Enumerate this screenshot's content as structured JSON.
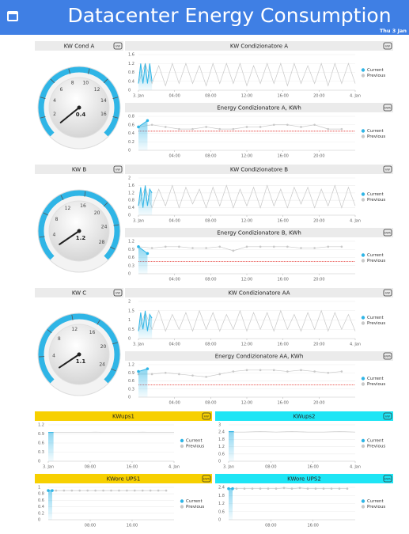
{
  "header": {
    "title": "Datacenter Energy Consumption",
    "date": "Thu 3 Jan"
  },
  "chart_data": [
    {
      "type": "gauge",
      "title": "KW Cond A",
      "unit": "kW",
      "value": 0.4,
      "value_labels": "0.4",
      "ylim": [
        0,
        18
      ],
      "yticks": [
        2,
        4,
        6,
        8,
        10,
        12,
        14,
        16
      ],
      "color": "#2fb5e6"
    },
    {
      "type": "line",
      "title": "KW Condizionatore A",
      "unit": "kW",
      "xlim": [
        0,
        24
      ],
      "xticks": [
        {
          "value": 0,
          "label": "3. Jan"
        },
        {
          "value": 4,
          "label": "04:00"
        },
        {
          "value": 8,
          "label": "08:00"
        },
        {
          "value": 12,
          "label": "12:00"
        },
        {
          "value": 16,
          "label": "16:00"
        },
        {
          "value": 20,
          "label": "20:00"
        },
        {
          "value": 24,
          "label": "4. Jan"
        }
      ],
      "ylim": [
        0,
        1.6
      ],
      "yticks": [
        0,
        0.4,
        0.8,
        1.2,
        1.6
      ],
      "markers": false,
      "series": [
        {
          "name": "Current",
          "color": "#2fb5e6",
          "x": [
            0,
            0.25,
            0.5,
            0.75,
            1,
            1.25,
            1.5
          ],
          "values": [
            0.3,
            1.2,
            0.3,
            1.2,
            0.3,
            1.2,
            0.4
          ]
        },
        {
          "name": "Previous",
          "color": "#c8c8c8",
          "x": [
            0,
            0.75,
            1.5,
            2.25,
            3,
            3.75,
            4.5,
            5.25,
            6,
            6.75,
            7.5,
            8.25,
            9,
            9.75,
            10.5,
            11.25,
            12,
            12.75,
            13.5,
            14.25,
            15,
            15.75,
            16.5,
            17.25,
            18,
            18.75,
            19.5,
            20.25,
            21,
            21.75,
            22.5,
            23.25,
            24
          ],
          "values": [
            0.3,
            1.2,
            0.3,
            1.1,
            0.2,
            1.2,
            0.3,
            1.2,
            0.3,
            1.1,
            0.2,
            1.2,
            0.3,
            1.2,
            0.3,
            1.2,
            0.2,
            1.1,
            0.3,
            1.2,
            0.3,
            1.2,
            0.2,
            1.2,
            0.3,
            1.1,
            0.3,
            1.2,
            0.2,
            1.2,
            0.3,
            1.2,
            0.3
          ]
        }
      ]
    },
    {
      "type": "line",
      "title": "Energy Condizionatore A, KWh",
      "unit": "kWh",
      "xlim": [
        0,
        24
      ],
      "xticks": [
        {
          "value": 4,
          "label": "04:00"
        },
        {
          "value": 8,
          "label": "08:00"
        },
        {
          "value": 12,
          "label": "12:00"
        },
        {
          "value": 16,
          "label": "16:00"
        },
        {
          "value": 20,
          "label": "20:00"
        }
      ],
      "ylim": [
        0,
        0.8
      ],
      "yticks": [
        0,
        0.2,
        0.4,
        0.6,
        0.8
      ],
      "threshold": 0.45,
      "markers": true,
      "series": [
        {
          "name": "Current",
          "color": "#2fb5e6",
          "x": [
            0,
            1
          ],
          "values": [
            0.55,
            0.7
          ]
        },
        {
          "name": "Previous",
          "color": "#c8c8c8",
          "x": [
            0,
            1.5,
            3,
            4.5,
            6,
            7.5,
            9,
            10.5,
            12,
            13.5,
            15,
            16.5,
            18,
            19.5,
            21,
            22.5
          ],
          "values": [
            0.55,
            0.6,
            0.55,
            0.5,
            0.5,
            0.55,
            0.5,
            0.5,
            0.55,
            0.55,
            0.6,
            0.6,
            0.55,
            0.6,
            0.5,
            0.5
          ]
        }
      ]
    },
    {
      "type": "gauge",
      "title": "KW B",
      "unit": "kW",
      "value": 1.2,
      "value_labels": "1.2",
      "ylim": [
        0,
        30
      ],
      "yticks": [
        4,
        8,
        12,
        16,
        20,
        24,
        28
      ],
      "color": "#2fb5e6"
    },
    {
      "type": "line",
      "title": "KW Condizionatore B",
      "unit": "kW",
      "xlim": [
        0,
        24
      ],
      "xticks": [
        {
          "value": 0,
          "label": "3. Jan"
        },
        {
          "value": 4,
          "label": "04:00"
        },
        {
          "value": 8,
          "label": "08:00"
        },
        {
          "value": 12,
          "label": "12:00"
        },
        {
          "value": 16,
          "label": "16:00"
        },
        {
          "value": 20,
          "label": "20:00"
        },
        {
          "value": 24,
          "label": "4. Jan"
        }
      ],
      "ylim": [
        0,
        2
      ],
      "yticks": [
        0,
        0.4,
        0.8,
        1.2,
        1.6,
        2
      ],
      "markers": false,
      "series": [
        {
          "name": "Current",
          "color": "#2fb5e6",
          "x": [
            0,
            0.25,
            0.5,
            0.75,
            1,
            1.25,
            1.5
          ],
          "values": [
            0.5,
            1.5,
            0.4,
            1.6,
            0.5,
            1.4,
            1.2
          ]
        },
        {
          "name": "Previous",
          "color": "#c8c8c8",
          "x": [
            0,
            0.75,
            1.5,
            2.25,
            3,
            3.75,
            4.5,
            5.25,
            6,
            6.75,
            7.5,
            8.25,
            9,
            9.75,
            10.5,
            11.25,
            12,
            12.75,
            13.5,
            14.25,
            15,
            15.75,
            16.5,
            17.25,
            18,
            18.75,
            19.5,
            20.25,
            21,
            21.75,
            22.5,
            23.25,
            24
          ],
          "values": [
            0.5,
            1.5,
            0.4,
            1.4,
            0.5,
            1.6,
            0.4,
            1.5,
            0.6,
            1.4,
            0.4,
            1.5,
            0.5,
            1.6,
            0.4,
            1.4,
            0.5,
            1.5,
            0.4,
            1.6,
            0.5,
            1.4,
            0.4,
            1.5,
            0.6,
            1.5,
            0.4,
            1.4,
            0.5,
            1.6,
            0.4,
            1.5,
            0.5
          ]
        }
      ]
    },
    {
      "type": "line",
      "title": "Energy Condizionatore B, KWh",
      "unit": "kWh",
      "xlim": [
        0,
        24
      ],
      "xticks": [
        {
          "value": 4,
          "label": "04:00"
        },
        {
          "value": 8,
          "label": "08:00"
        },
        {
          "value": 12,
          "label": "12:00"
        },
        {
          "value": 16,
          "label": "16:00"
        },
        {
          "value": 20,
          "label": "20:00"
        }
      ],
      "ylim": [
        0,
        1.2
      ],
      "yticks": [
        0,
        0.3,
        0.6,
        0.9,
        1.2
      ],
      "threshold": 0.45,
      "markers": true,
      "series": [
        {
          "name": "Current",
          "color": "#2fb5e6",
          "x": [
            0,
            1
          ],
          "values": [
            1,
            0.75
          ]
        },
        {
          "name": "Previous",
          "color": "#c8c8c8",
          "x": [
            0,
            1.5,
            3,
            4.5,
            6,
            7.5,
            9,
            10.5,
            12,
            13.5,
            15,
            16.5,
            18,
            19.5,
            21,
            22.5
          ],
          "values": [
            1,
            0.95,
            1,
            1,
            0.95,
            0.95,
            1,
            0.85,
            1,
            1,
            1,
            1,
            0.95,
            0.95,
            1,
            1
          ]
        }
      ]
    },
    {
      "type": "gauge",
      "title": "KW C",
      "unit": "kW",
      "value": 1.1,
      "value_labels": "1.1",
      "ylim": [
        0,
        26
      ],
      "yticks": [
        4,
        8,
        12,
        16,
        20,
        24
      ],
      "color": "#2fb5e6"
    },
    {
      "type": "line",
      "title": "KW Condizionatore AA",
      "unit": "kW",
      "xlim": [
        0,
        24
      ],
      "xticks": [
        {
          "value": 0,
          "label": "3. Jan"
        },
        {
          "value": 4,
          "label": "04:00"
        },
        {
          "value": 8,
          "label": "08:00"
        },
        {
          "value": 12,
          "label": "12:00"
        },
        {
          "value": 16,
          "label": "16:00"
        },
        {
          "value": 20,
          "label": "20:00"
        },
        {
          "value": 24,
          "label": "4. Jan"
        }
      ],
      "ylim": [
        0,
        2
      ],
      "yticks": [
        0,
        0.5,
        1,
        1.5,
        2
      ],
      "markers": false,
      "series": [
        {
          "name": "Current",
          "color": "#2fb5e6",
          "x": [
            0,
            0.25,
            0.5,
            0.75,
            1,
            1.25,
            1.5
          ],
          "values": [
            0.4,
            1.4,
            0.5,
            1.5,
            0.4,
            1.3,
            1.1
          ]
        },
        {
          "name": "Previous",
          "color": "#c8c8c8",
          "x": [
            0,
            0.75,
            1.5,
            2.25,
            3,
            3.75,
            4.5,
            5.25,
            6,
            6.75,
            7.5,
            8.25,
            9,
            9.75,
            10.5,
            11.25,
            12,
            12.75,
            13.5,
            14.25,
            15,
            15.75,
            16.5,
            17.25,
            18,
            18.75,
            19.5,
            20.25,
            21,
            21.75,
            22.5,
            23.25,
            24
          ],
          "values": [
            0.4,
            1.4,
            0.5,
            1.5,
            0.4,
            1.3,
            0.5,
            1.4,
            0.4,
            1.5,
            0.5,
            1.4,
            0.4,
            1.3,
            0.5,
            1.5,
            0.4,
            1.4,
            0.5,
            1.4,
            0.4,
            1.5,
            0.5,
            1.3,
            0.4,
            1.4,
            0.5,
            1.5,
            0.4,
            1.4,
            0.5,
            1.3,
            0.4
          ]
        }
      ]
    },
    {
      "type": "line",
      "title": "Energy Condizionatore AA, KWh",
      "unit": "kWh",
      "xlim": [
        0,
        24
      ],
      "xticks": [
        {
          "value": 4,
          "label": "04:00"
        },
        {
          "value": 8,
          "label": "08:00"
        },
        {
          "value": 12,
          "label": "12:00"
        },
        {
          "value": 16,
          "label": "16:00"
        },
        {
          "value": 20,
          "label": "20:00"
        }
      ],
      "ylim": [
        0,
        1.2
      ],
      "yticks": [
        0,
        0.3,
        0.6,
        0.9,
        1.2
      ],
      "threshold": 0.45,
      "markers": true,
      "series": [
        {
          "name": "Current",
          "color": "#2fb5e6",
          "x": [
            0,
            1
          ],
          "values": [
            0.95,
            1.05
          ]
        },
        {
          "name": "Previous",
          "color": "#c8c8c8",
          "x": [
            0,
            1.5,
            3,
            4.5,
            6,
            7.5,
            9,
            10.5,
            12,
            13.5,
            15,
            16.5,
            18,
            19.5,
            21,
            22.5
          ],
          "values": [
            0.85,
            0.85,
            0.9,
            0.85,
            0.8,
            0.75,
            0.85,
            0.95,
            1,
            1,
            1,
            0.95,
            1,
            0.95,
            0.9,
            0.95
          ]
        }
      ]
    },
    {
      "type": "line",
      "title": "KWups1",
      "unit": "kW",
      "xlim": [
        0,
        24
      ],
      "xticks": [
        {
          "value": 0,
          "label": "3. Jan"
        },
        {
          "value": 8,
          "label": "08:00"
        },
        {
          "value": 16,
          "label": "16:00"
        },
        {
          "value": 24,
          "label": "4. Jan"
        }
      ],
      "ylim": [
        0,
        1.2
      ],
      "yticks": [
        0,
        0.3,
        0.6,
        0.9,
        1.2
      ],
      "markers": false,
      "series": [
        {
          "name": "Current",
          "color": "#2fb5e6",
          "x": [
            0,
            1
          ],
          "values": [
            0.95,
            0.95
          ]
        },
        {
          "name": "Previous",
          "color": "#c8c8c8",
          "x": [
            0,
            3,
            6,
            9,
            12,
            15,
            18,
            21,
            24
          ],
          "values": [
            0.95,
            0.95,
            0.95,
            0.96,
            0.95,
            0.95,
            0.96,
            0.95,
            0.95
          ]
        }
      ]
    },
    {
      "type": "line",
      "title": "KWups2",
      "unit": "kW",
      "xlim": [
        0,
        24
      ],
      "xticks": [
        {
          "value": 0,
          "label": "3. Jan"
        },
        {
          "value": 8,
          "label": "08:00"
        },
        {
          "value": 16,
          "label": "16:00"
        },
        {
          "value": 24,
          "label": "4. Jan"
        }
      ],
      "ylim": [
        0,
        3
      ],
      "yticks": [
        0,
        0.6,
        1.2,
        1.8,
        2.4,
        3
      ],
      "markers": false,
      "series": [
        {
          "name": "Current",
          "color": "#2fb5e6",
          "x": [
            0,
            1
          ],
          "values": [
            2.45,
            2.45
          ]
        },
        {
          "name": "Previous",
          "color": "#c8c8c8",
          "x": [
            0,
            3,
            6,
            9,
            12,
            15,
            18,
            21,
            24
          ],
          "values": [
            2.4,
            2.4,
            2.45,
            2.4,
            2.45,
            2.4,
            2.4,
            2.45,
            2.4
          ]
        }
      ]
    },
    {
      "type": "line",
      "title": "KWore UPS1",
      "unit": "kWh",
      "xlim": [
        0,
        24
      ],
      "xticks": [
        {
          "value": 8,
          "label": "08:00"
        },
        {
          "value": 16,
          "label": "16:00"
        }
      ],
      "ylim": [
        0,
        1
      ],
      "yticks": [
        0,
        0.2,
        0.4,
        0.6,
        0.8,
        1
      ],
      "markers": true,
      "series": [
        {
          "name": "Current",
          "color": "#2fb5e6",
          "x": [
            0,
            0.75
          ],
          "values": [
            0.9,
            0.9
          ]
        },
        {
          "name": "Previous",
          "color": "#c8c8c8",
          "x": [
            0,
            1.5,
            3,
            4.5,
            6,
            7.5,
            9,
            10.5,
            12,
            13.5,
            15,
            16.5,
            18,
            19.5,
            21,
            22.5
          ],
          "values": [
            0.9,
            0.9,
            0.9,
            0.9,
            0.9,
            0.9,
            0.9,
            0.9,
            0.9,
            0.9,
            0.9,
            0.9,
            0.9,
            0.9,
            0.9,
            0.9
          ]
        }
      ]
    },
    {
      "type": "line",
      "title": "KWore UPS2",
      "unit": "kWh",
      "xlim": [
        0,
        24
      ],
      "xticks": [
        {
          "value": 8,
          "label": "08:00"
        },
        {
          "value": 16,
          "label": "16:00"
        }
      ],
      "ylim": [
        0,
        2.4
      ],
      "yticks": [
        0,
        0.6,
        1.2,
        1.8,
        2.4
      ],
      "markers": true,
      "series": [
        {
          "name": "Current",
          "color": "#2fb5e6",
          "x": [
            0,
            0.75
          ],
          "values": [
            2.3,
            2.3
          ]
        },
        {
          "name": "Previous",
          "color": "#c8c8c8",
          "x": [
            0,
            1.5,
            3,
            4.5,
            6,
            7.5,
            9,
            10.5,
            12,
            13.5,
            15,
            16.5,
            18,
            19.5,
            21,
            22.5
          ],
          "values": [
            2.3,
            2.3,
            2.3,
            2.3,
            2.3,
            2.3,
            2.3,
            2.35,
            2.3,
            2.35,
            2.3,
            2.3,
            2.3,
            2.3,
            2.3,
            2.3
          ]
        }
      ]
    }
  ]
}
